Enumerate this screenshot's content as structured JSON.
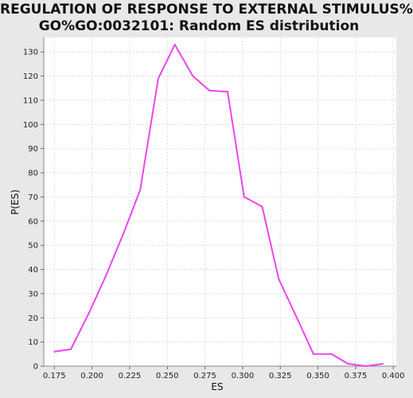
{
  "chart_data": {
    "type": "line",
    "title": "REGULATION OF RESPONSE TO EXTERNAL STIMULUS%",
    "subtitle": "GO%GO:0032101: Random ES distribution",
    "xlabel": "ES",
    "ylabel": "P(ES)",
    "xlim": [
      0.168,
      0.402
    ],
    "ylim": [
      0,
      136
    ],
    "x_ticks": [
      "0.175",
      "0.200",
      "0.225",
      "0.250",
      "0.275",
      "0.300",
      "0.325",
      "0.350",
      "0.375",
      "0.400"
    ],
    "y_ticks": [
      "0",
      "10",
      "20",
      "30",
      "40",
      "50",
      "60",
      "70",
      "80",
      "90",
      "100",
      "110",
      "120",
      "130"
    ],
    "grid": true,
    "line_color": "#ee44ee",
    "series": [
      {
        "x": [
          0.175,
          0.186,
          0.198,
          0.209,
          0.221,
          0.232,
          0.244,
          0.255,
          0.267,
          0.278,
          0.29,
          0.301,
          0.313,
          0.324,
          0.336,
          0.347,
          0.359,
          0.37,
          0.382,
          0.393
        ],
        "y": [
          6,
          7,
          22,
          37,
          55,
          73,
          119,
          133,
          120,
          114,
          113.5,
          70,
          66,
          36,
          20,
          5,
          5,
          1,
          0,
          1
        ]
      }
    ]
  }
}
